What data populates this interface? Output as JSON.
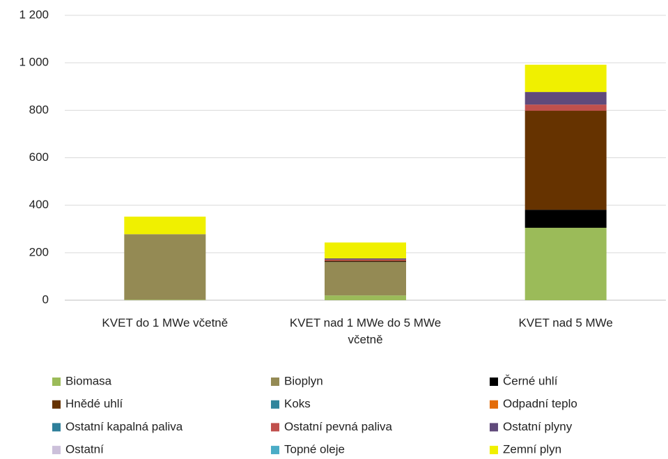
{
  "chart_data": {
    "type": "stacked_bar",
    "categories": [
      "KVET do 1 MWe včetně",
      "KVET nad 1 MWe do 5 MWe včetně",
      "KVET nad 5 MWe"
    ],
    "series": [
      {
        "name": "Biomasa",
        "color": "#9bbb59",
        "values": [
          2,
          20,
          305
        ]
      },
      {
        "name": "Bioplyn",
        "color": "#948a54",
        "values": [
          276,
          141,
          0
        ]
      },
      {
        "name": "Černé uhlí",
        "color": "#000000",
        "values": [
          0,
          2,
          76
        ]
      },
      {
        "name": "Hnědé uhlí",
        "color": "#663300",
        "values": [
          0,
          3,
          417
        ]
      },
      {
        "name": "Koks",
        "color": "#31859c",
        "values": [
          0,
          0,
          0
        ]
      },
      {
        "name": "Odpadní teplo",
        "color": "#e36c09",
        "values": [
          0,
          0,
          0
        ]
      },
      {
        "name": "Ostatní kapalná paliva",
        "color": "#2e7f9a",
        "values": [
          0,
          0,
          0
        ]
      },
      {
        "name": "Ostatní pevná paliva",
        "color": "#c0504d",
        "values": [
          0,
          5,
          26
        ]
      },
      {
        "name": "Ostatní plyny",
        "color": "#604a7b",
        "values": [
          0,
          5,
          53
        ]
      },
      {
        "name": "Ostatní",
        "color": "#ccc0da",
        "values": [
          0,
          0,
          0
        ]
      },
      {
        "name": "Topné oleje",
        "color": "#4bacc6",
        "values": [
          0,
          0,
          0
        ]
      },
      {
        "name": "Zemní plyn",
        "color": "#f0f000",
        "values": [
          74,
          67,
          115
        ]
      }
    ],
    "ylim": [
      0,
      1200
    ],
    "yticks": [
      0,
      200,
      400,
      600,
      800,
      {
        "value": 1000,
        "label": "1 000"
      },
      {
        "value": 1200,
        "label": "1 200"
      }
    ],
    "grid": true
  }
}
